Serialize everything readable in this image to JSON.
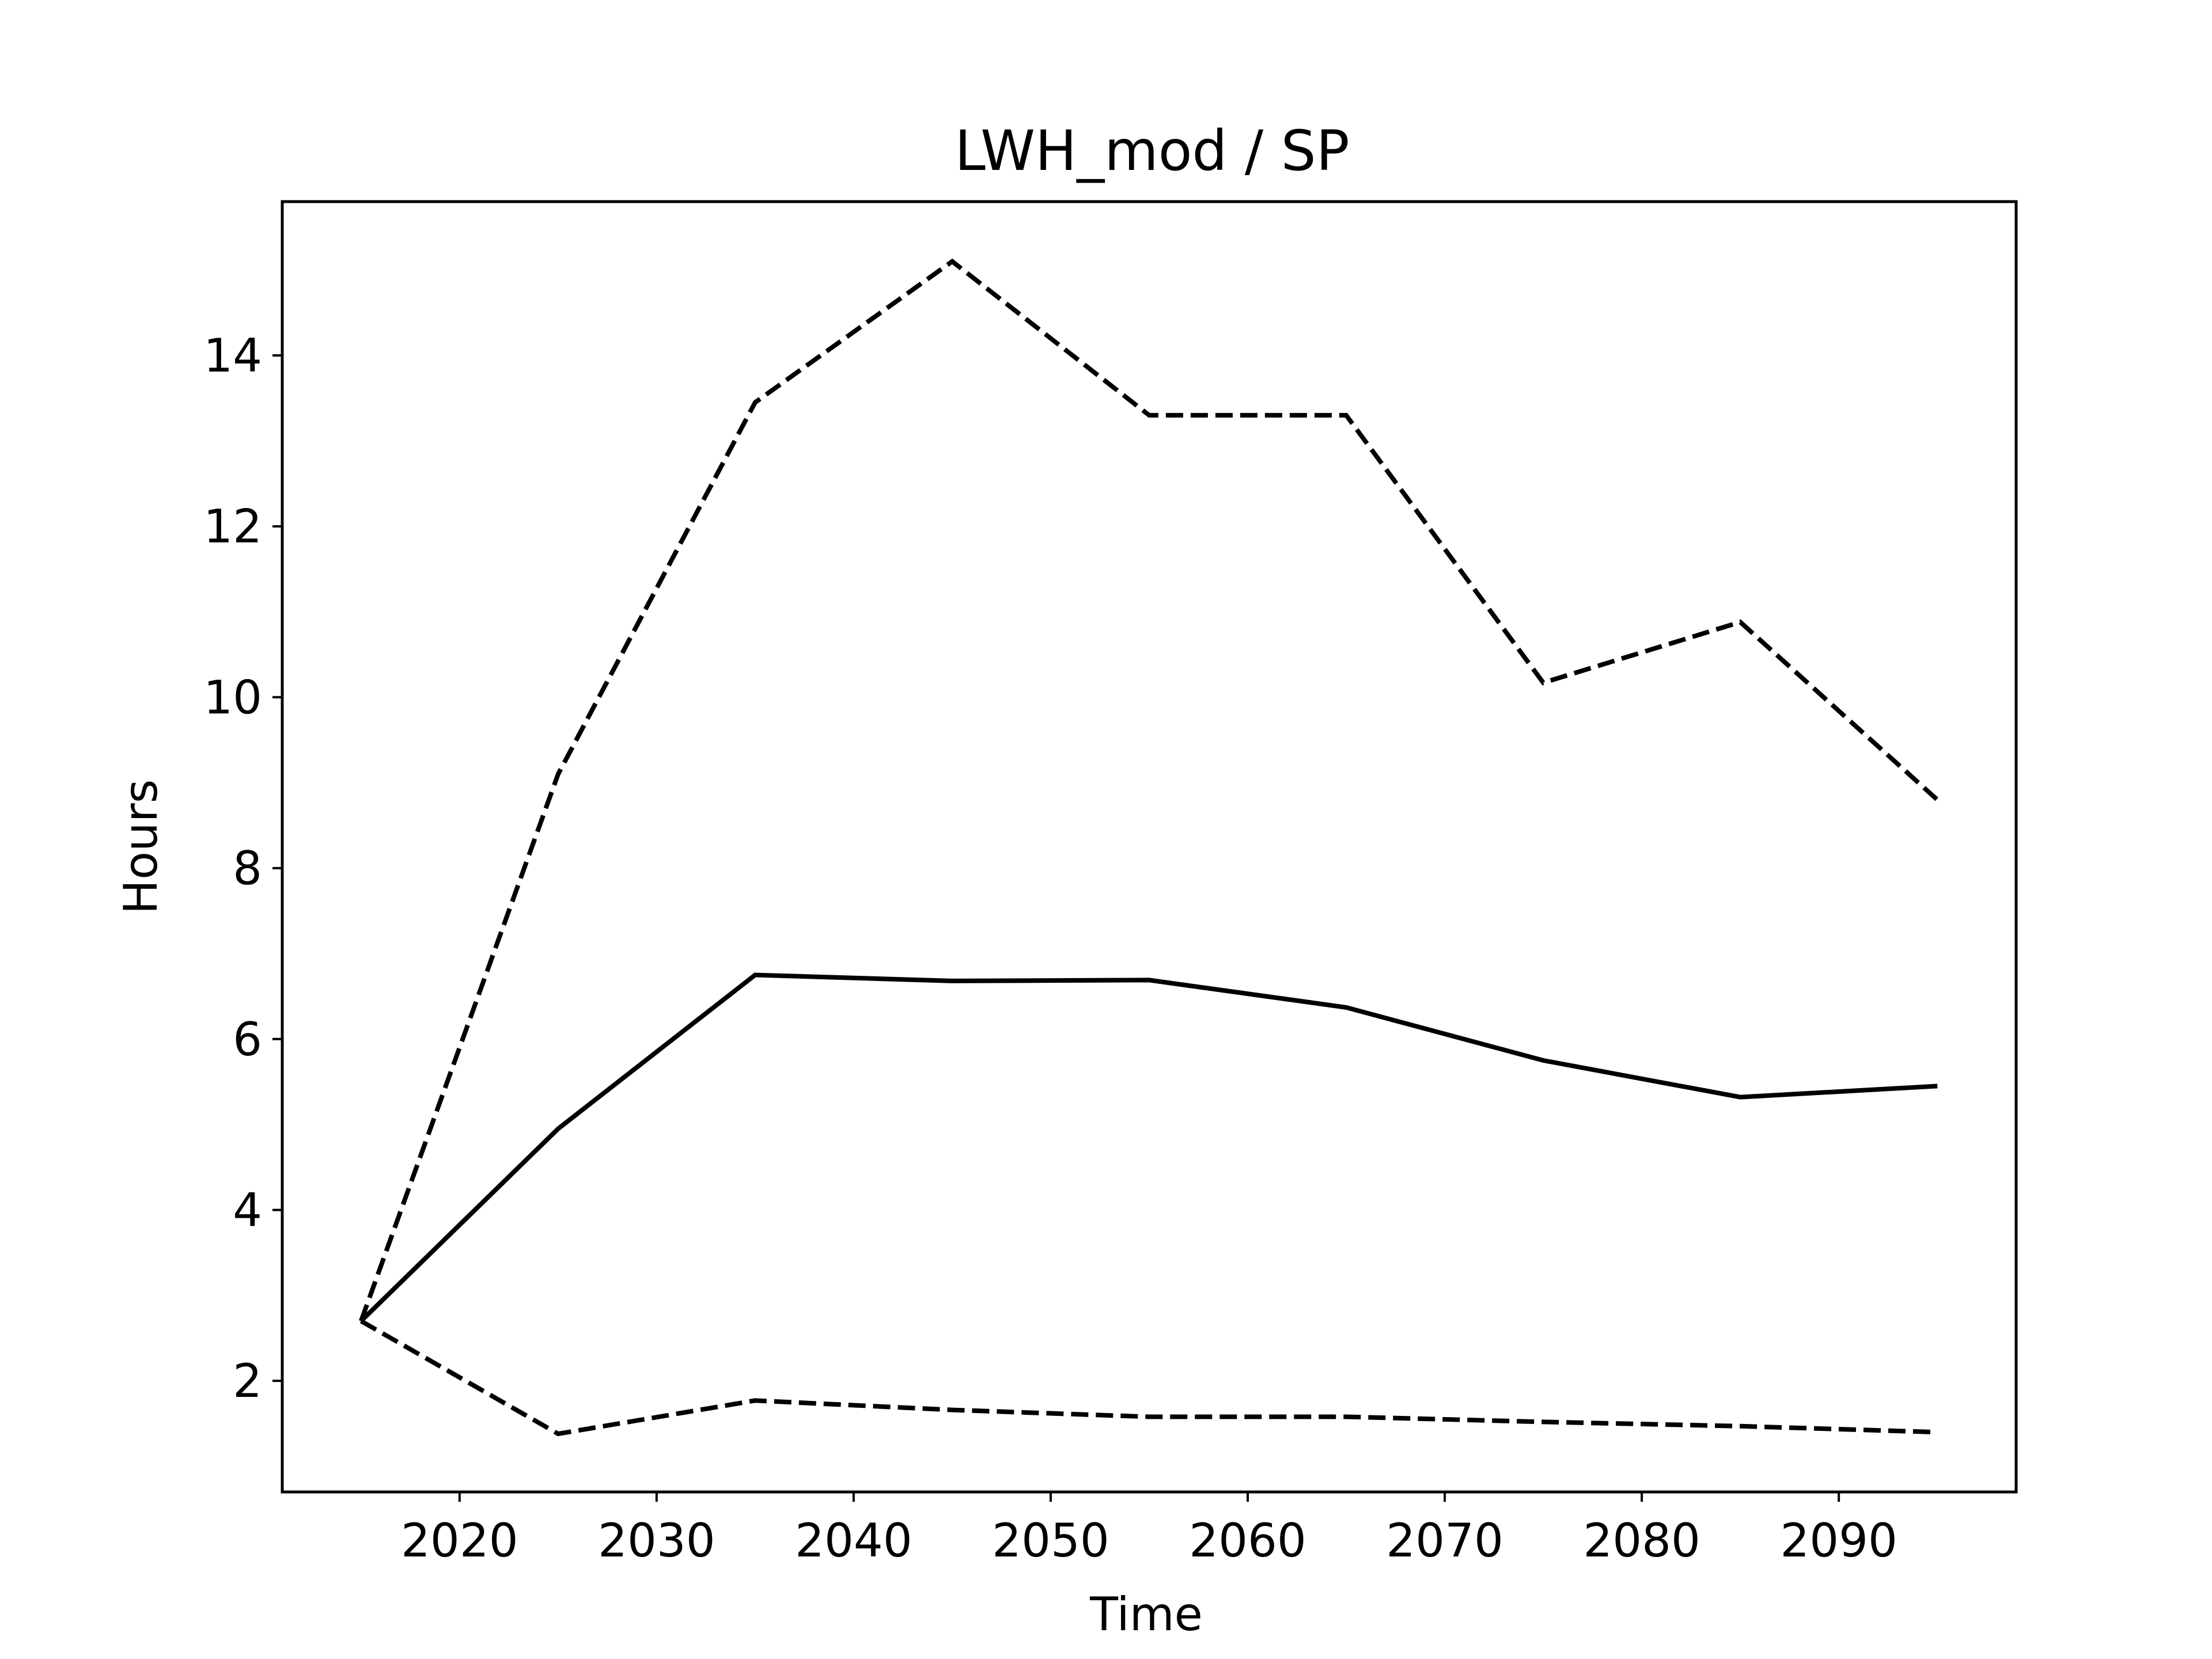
{
  "chart_data": {
    "type": "line",
    "title": "LWH_mod / SP",
    "xlabel": "Time",
    "ylabel": "Hours",
    "xlim": [
      2011,
      2099
    ],
    "ylim": [
      0.7,
      15.8
    ],
    "xticks": [
      2020,
      2030,
      2040,
      2050,
      2060,
      2070,
      2080,
      2090
    ],
    "yticks": [
      2,
      4,
      6,
      8,
      10,
      12,
      14
    ],
    "grid": false,
    "legend": "none",
    "x": [
      2015,
      2025,
      2035,
      2045,
      2055,
      2065,
      2075,
      2085,
      2095
    ],
    "series": [
      {
        "style": "solid",
        "color": "#000000",
        "values": [
          2.7,
          4.95,
          6.75,
          6.68,
          6.69,
          6.37,
          5.75,
          5.32,
          5.45
        ]
      },
      {
        "style": "dashed",
        "color": "#000000",
        "values": [
          2.7,
          9.1,
          13.45,
          15.1,
          13.3,
          13.3,
          10.17,
          10.88,
          8.8
        ]
      },
      {
        "style": "dashed",
        "color": "#000000",
        "values": [
          2.7,
          1.38,
          1.77,
          1.66,
          1.58,
          1.58,
          1.52,
          1.47,
          1.4
        ]
      }
    ]
  }
}
